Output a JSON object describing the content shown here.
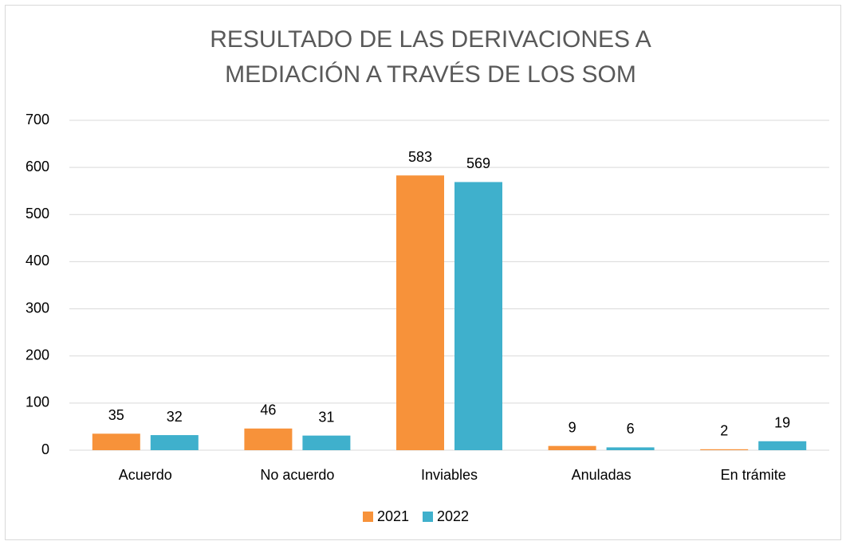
{
  "chart_data": {
    "type": "bar",
    "title": "RESULTADO DE LAS DERIVACIONES A MEDIACIÓN A TRAVÉS DE LOS SOM",
    "categories": [
      "Acuerdo",
      "No acuerdo",
      "Inviables",
      "Anuladas",
      "En trámite"
    ],
    "series": [
      {
        "name": "2021",
        "color": "#f7923a",
        "values": [
          35,
          46,
          583,
          9,
          2
        ]
      },
      {
        "name": "2022",
        "color": "#3fb0cc",
        "values": [
          32,
          31,
          569,
          6,
          19
        ]
      }
    ],
    "ylim": [
      0,
      700
    ],
    "yticks": [
      0,
      100,
      200,
      300,
      400,
      500,
      600,
      700
    ],
    "grid": true,
    "legend": "bottom"
  }
}
